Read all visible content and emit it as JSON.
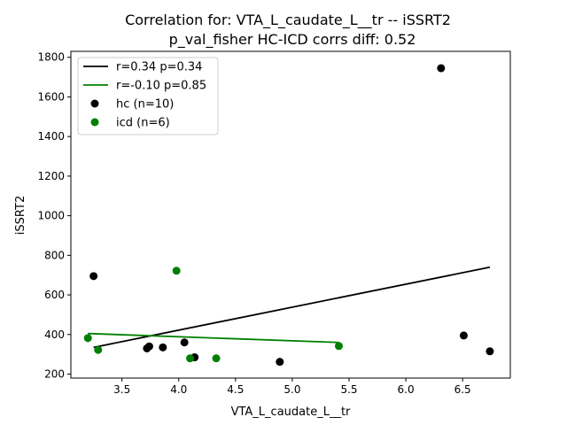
{
  "chart_data": {
    "type": "scatter",
    "title": "Correlation for: VTA_L_caudate_L__tr -- iSSRT2",
    "subtitle": "p_val_fisher HC-ICD corrs diff: 0.52",
    "xlabel": "VTA_L_caudate_L__tr",
    "ylabel": "iSSRT2",
    "xlim": [
      3.05,
      6.92
    ],
    "ylim": [
      180,
      1830
    ],
    "xticks": [
      3.5,
      4.0,
      4.5,
      5.0,
      5.5,
      6.0,
      6.5
    ],
    "xtick_labels": [
      "3.5",
      "4.0",
      "4.5",
      "5.0",
      "5.5",
      "6.0",
      "6.5"
    ],
    "yticks": [
      200,
      400,
      600,
      800,
      1000,
      1200,
      1400,
      1600,
      1800
    ],
    "ytick_labels": [
      "200",
      "400",
      "600",
      "800",
      "1000",
      "1200",
      "1400",
      "1600",
      "1800"
    ],
    "grid": false,
    "legend_position": "top-left",
    "series": [
      {
        "name": "hc (n=10)",
        "color": "#000000",
        "x": [
          3.25,
          3.72,
          3.74,
          3.86,
          4.05,
          4.14,
          4.89,
          6.31,
          6.51,
          6.74
        ],
        "y": [
          695,
          330,
          340,
          335,
          360,
          285,
          262,
          1745,
          395,
          315
        ]
      },
      {
        "name": "icd (n=6)",
        "color": "#008000",
        "x": [
          3.2,
          3.29,
          3.98,
          4.1,
          4.33,
          5.41
        ],
        "y": [
          382,
          322,
          722,
          280,
          280,
          342
        ]
      }
    ],
    "fit_lines": [
      {
        "name": "r=0.34 p=0.34",
        "color": "#000000",
        "x": [
          3.25,
          6.74
        ],
        "y": [
          335,
          740
        ]
      },
      {
        "name": "r=-0.10 p=0.85",
        "color": "#008000",
        "x": [
          3.2,
          5.41
        ],
        "y": [
          405,
          360
        ]
      }
    ]
  }
}
